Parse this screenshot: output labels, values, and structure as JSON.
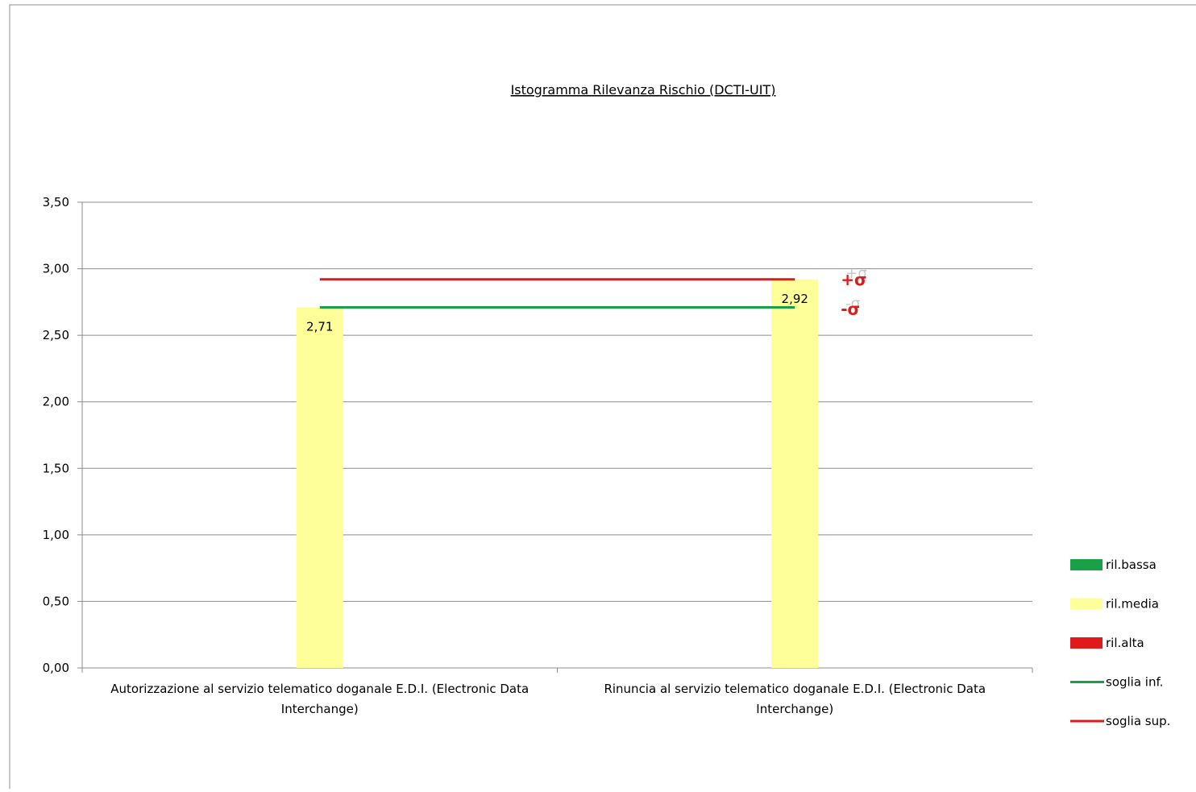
{
  "chart_data": {
    "type": "bar",
    "title": "Istogramma Rilevanza Rischio (DCTI-UIT)",
    "categories": [
      [
        "Autorizzazione al servizio telematico doganale E.D.I. (Electronic Data",
        "Interchange)"
      ],
      [
        "Rinuncia al servizio telematico doganale E.D.I. (Electronic Data",
        "Interchange)"
      ]
    ],
    "values": [
      2.71,
      2.92
    ],
    "value_labels": [
      "2,71",
      "2,92"
    ],
    "ylim": [
      0,
      3.5
    ],
    "ytick_values": [
      0,
      0.5,
      1,
      1.5,
      2,
      2.5,
      3,
      3.5
    ],
    "ytick_labels": [
      "0,00",
      "0,50",
      "1,00",
      "1,50",
      "2,00",
      "2,50",
      "3,00",
      "3,50"
    ],
    "grid": true,
    "thresholds": [
      {
        "name": "soglia inf.",
        "value": 2.71,
        "color": "#1aa147"
      },
      {
        "name": "soglia sup.",
        "value": 2.92,
        "color": "#e01a1a"
      }
    ],
    "sigma_labels": {
      "upper": "+σ",
      "lower": "-σ",
      "upper_color": "#e01a1a",
      "lower_color": "#e01a1a"
    },
    "legend_position": "right",
    "legend": [
      {
        "label": "ril.bassa",
        "kind": "box",
        "color": "#1aa147"
      },
      {
        "label": "ril.media",
        "kind": "box",
        "color": "#ffff99"
      },
      {
        "label": "ril.alta",
        "kind": "box",
        "color": "#e01a1a"
      },
      {
        "label": "soglia inf.",
        "kind": "line",
        "color": "#1aa147"
      },
      {
        "label": "soglia sup.",
        "kind": "line",
        "color": "#e01a1a"
      }
    ],
    "colors": {
      "bar": "#ffff99",
      "grid": "#8c8c8c",
      "axis": "#8c8c8c"
    }
  }
}
